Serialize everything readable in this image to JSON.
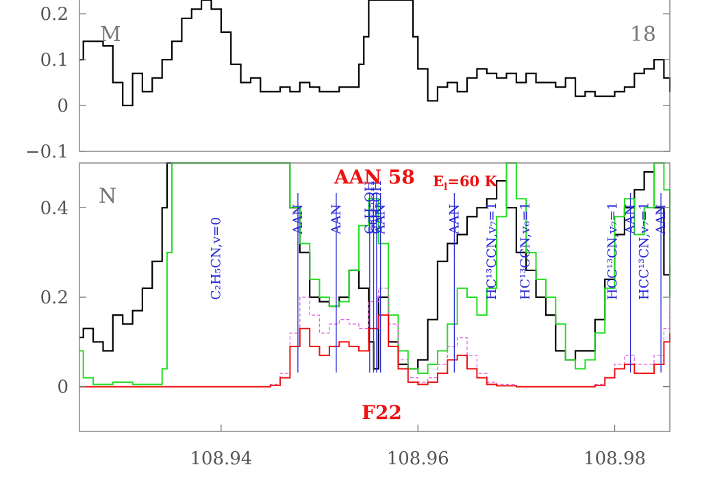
{
  "chart_data": [
    {
      "panel": "M",
      "type": "line",
      "panel_label": "M",
      "corner_number": "18",
      "xlim": [
        108.9256,
        108.9856
      ],
      "ylim": [
        -0.1,
        0.23
      ],
      "yticks": [
        {
          "v": 0.2,
          "label": "0.2"
        },
        {
          "v": 0.1,
          "label": "0.1"
        },
        {
          "v": 0,
          "label": "0"
        },
        {
          "v": -0.1,
          "label": "−0.1"
        }
      ],
      "series": [
        {
          "color": "#000000",
          "x": [
            108.9256,
            108.926,
            108.927,
            108.928,
            108.929,
            108.93,
            108.931,
            108.932,
            108.933,
            108.934,
            108.935,
            108.936,
            108.937,
            108.938,
            108.939,
            108.94,
            108.941,
            108.942,
            108.943,
            108.944,
            108.945,
            108.946,
            108.947,
            108.948,
            108.949,
            108.95,
            108.951,
            108.952,
            108.953,
            108.954,
            108.9545,
            108.955,
            108.9555,
            108.956,
            108.957,
            108.958,
            108.959,
            108.9595,
            108.96,
            108.961,
            108.962,
            108.963,
            108.964,
            108.965,
            108.966,
            108.967,
            108.968,
            108.969,
            108.97,
            108.971,
            108.972,
            108.973,
            108.974,
            108.975,
            108.976,
            108.977,
            108.978,
            108.979,
            108.98,
            108.981,
            108.982,
            108.983,
            108.984,
            108.985,
            108.9856
          ],
          "y": [
            0.1,
            0.14,
            0.14,
            0.13,
            0.05,
            0.0,
            0.07,
            0.03,
            0.06,
            0.1,
            0.14,
            0.19,
            0.21,
            0.23,
            0.21,
            0.16,
            0.09,
            0.05,
            0.06,
            0.03,
            0.03,
            0.04,
            0.03,
            0.05,
            0.04,
            0.03,
            0.03,
            0.04,
            0.04,
            0.09,
            0.15,
            0.23,
            0.23,
            0.23,
            0.23,
            0.23,
            0.23,
            0.15,
            0.08,
            0.01,
            0.04,
            0.05,
            0.03,
            0.06,
            0.08,
            0.07,
            0.06,
            0.07,
            0.05,
            0.07,
            0.05,
            0.05,
            0.04,
            0.06,
            0.02,
            0.03,
            0.02,
            0.02,
            0.03,
            0.04,
            0.07,
            0.08,
            0.1,
            0.06,
            0.03
          ]
        }
      ]
    },
    {
      "panel": "N",
      "type": "line",
      "panel_label": "N",
      "title": "AAN 58",
      "annotation": "E",
      "annotation_sub": "l",
      "annotation_rest": "=60 K",
      "bottom_label": "F22",
      "xlim": [
        108.9256,
        108.9856
      ],
      "ylim": [
        -0.1,
        0.5
      ],
      "xticks": [
        {
          "v": 108.94,
          "label": "108.94"
        },
        {
          "v": 108.96,
          "label": "108.96"
        },
        {
          "v": 108.98,
          "label": "108.98"
        }
      ],
      "yticks": [
        {
          "v": 0.4,
          "label": "0.4"
        },
        {
          "v": 0.2,
          "label": "0.2"
        },
        {
          "v": 0,
          "label": "0"
        }
      ],
      "series": [
        {
          "color": "#000000",
          "x": [
            108.9256,
            108.926,
            108.927,
            108.928,
            108.929,
            108.93,
            108.931,
            108.932,
            108.933,
            108.934,
            108.9345,
            108.935,
            108.9465,
            108.947,
            108.948,
            108.949,
            108.95,
            108.951,
            108.952,
            108.953,
            108.954,
            108.955,
            108.9555,
            108.956,
            108.957,
            108.958,
            108.959,
            108.96,
            108.961,
            108.962,
            108.963,
            108.964,
            108.965,
            108.966,
            108.967,
            108.968,
            108.969,
            108.97,
            108.971,
            108.972,
            108.973,
            108.974,
            108.975,
            108.976,
            108.977,
            108.978,
            108.979,
            108.98,
            108.981,
            108.982,
            108.983,
            108.984,
            108.985,
            108.9856
          ],
          "y": [
            0.11,
            0.13,
            0.1,
            0.08,
            0.16,
            0.14,
            0.17,
            0.22,
            0.28,
            0.4,
            0.5,
            0.5,
            0.5,
            0.4,
            0.3,
            0.2,
            0.19,
            0.18,
            0.2,
            0.26,
            0.22,
            0.1,
            0.04,
            0.2,
            0.1,
            0.05,
            0.04,
            0.06,
            0.15,
            0.28,
            0.32,
            0.34,
            0.38,
            0.4,
            0.42,
            0.46,
            0.4,
            0.3,
            0.26,
            0.2,
            0.16,
            0.08,
            0.06,
            0.08,
            0.08,
            0.15,
            0.24,
            0.34,
            0.4,
            0.44,
            0.48,
            0.4,
            0.25,
            0.27
          ]
        },
        {
          "color": "#22dd22",
          "x": [
            108.9256,
            108.926,
            108.927,
            108.928,
            108.929,
            108.93,
            108.931,
            108.932,
            108.933,
            108.934,
            108.9345,
            108.935,
            108.9465,
            108.947,
            108.948,
            108.949,
            108.95,
            108.951,
            108.952,
            108.953,
            108.954,
            108.955,
            108.956,
            108.957,
            108.958,
            108.959,
            108.96,
            108.961,
            108.962,
            108.963,
            108.964,
            108.965,
            108.966,
            108.967,
            108.968,
            108.969,
            108.97,
            108.971,
            108.972,
            108.973,
            108.974,
            108.975,
            108.976,
            108.977,
            108.978,
            108.979,
            108.98,
            108.981,
            108.982,
            108.983,
            108.984,
            108.985,
            108.9856
          ],
          "y": [
            0.08,
            0.02,
            0.005,
            0.005,
            0.01,
            0.01,
            0.005,
            0.005,
            0.005,
            0.04,
            0.3,
            0.5,
            0.5,
            0.4,
            0.32,
            0.24,
            0.2,
            0.18,
            0.19,
            0.26,
            0.36,
            0.42,
            0.32,
            0.16,
            0.08,
            0.04,
            0.03,
            0.05,
            0.08,
            0.14,
            0.22,
            0.2,
            0.16,
            0.22,
            0.38,
            0.5,
            0.42,
            0.3,
            0.24,
            0.2,
            0.14,
            0.06,
            0.04,
            0.06,
            0.12,
            0.22,
            0.38,
            0.42,
            0.34,
            0.4,
            0.5,
            0.44,
            0.2
          ]
        },
        {
          "color": "#dd66dd",
          "dashed": true,
          "x": [
            108.9256,
            108.943,
            108.945,
            108.946,
            108.947,
            108.948,
            108.949,
            108.95,
            108.951,
            108.952,
            108.953,
            108.954,
            108.955,
            108.956,
            108.957,
            108.958,
            108.959,
            108.96,
            108.961,
            108.962,
            108.963,
            108.964,
            108.965,
            108.966,
            108.967,
            108.968,
            108.97,
            108.975,
            108.978,
            108.979,
            108.98,
            108.981,
            108.982,
            108.983,
            108.984,
            108.985,
            108.9856
          ],
          "y": [
            0.0,
            0.0,
            0.005,
            0.03,
            0.12,
            0.2,
            0.16,
            0.12,
            0.14,
            0.15,
            0.14,
            0.13,
            0.19,
            0.22,
            0.14,
            0.06,
            0.02,
            0.01,
            0.02,
            0.05,
            0.09,
            0.11,
            0.07,
            0.03,
            0.01,
            0.005,
            0.0,
            0.0,
            0.005,
            0.02,
            0.05,
            0.07,
            0.05,
            0.05,
            0.07,
            0.13,
            0.18
          ]
        },
        {
          "color": "#ee1111",
          "x": [
            108.9256,
            108.943,
            108.945,
            108.946,
            108.947,
            108.948,
            108.949,
            108.95,
            108.951,
            108.952,
            108.953,
            108.954,
            108.955,
            108.956,
            108.957,
            108.958,
            108.959,
            108.96,
            108.961,
            108.962,
            108.963,
            108.964,
            108.965,
            108.966,
            108.967,
            108.968,
            108.97,
            108.975,
            108.978,
            108.979,
            108.98,
            108.981,
            108.982,
            108.983,
            108.984,
            108.985,
            108.9856
          ],
          "y": [
            0.0,
            0.0,
            0.003,
            0.02,
            0.09,
            0.13,
            0.09,
            0.07,
            0.09,
            0.1,
            0.09,
            0.08,
            0.13,
            0.16,
            0.09,
            0.04,
            0.01,
            0.005,
            0.01,
            0.03,
            0.06,
            0.07,
            0.04,
            0.02,
            0.005,
            0.002,
            0.0,
            0.0,
            0.003,
            0.02,
            0.04,
            0.05,
            0.03,
            0.03,
            0.05,
            0.1,
            0.12
          ]
        }
      ],
      "line_markers": [
        {
          "x": 108.9478,
          "label": "AAN"
        },
        {
          "x": 108.9517,
          "label": "AAN"
        },
        {
          "x": 108.9551,
          "label": "C₂H₅OH"
        },
        {
          "x": 108.9555,
          "label": "SO₂"
        },
        {
          "x": 108.9558,
          "label": "C³H₅OH"
        },
        {
          "x": 108.9562,
          "label": "AAN"
        },
        {
          "x": 108.9637,
          "label": "AAN"
        },
        {
          "x": 108.9816,
          "label": "AAN"
        },
        {
          "x": 108.9847,
          "label": "AAN"
        }
      ],
      "line_labels": [
        {
          "x": 108.9395,
          "text": "C₂H₅CN,v=0"
        },
        {
          "x": 108.9675,
          "text": "HC¹³CCN,v₇=1"
        },
        {
          "x": 108.9709,
          "text": "HC¹³CCN,v₆=1"
        },
        {
          "x": 108.9798,
          "text": "HCC¹³CN,v₇=1"
        },
        {
          "x": 108.983,
          "text": "HCC¹³CN,v₇=1"
        }
      ]
    }
  ]
}
